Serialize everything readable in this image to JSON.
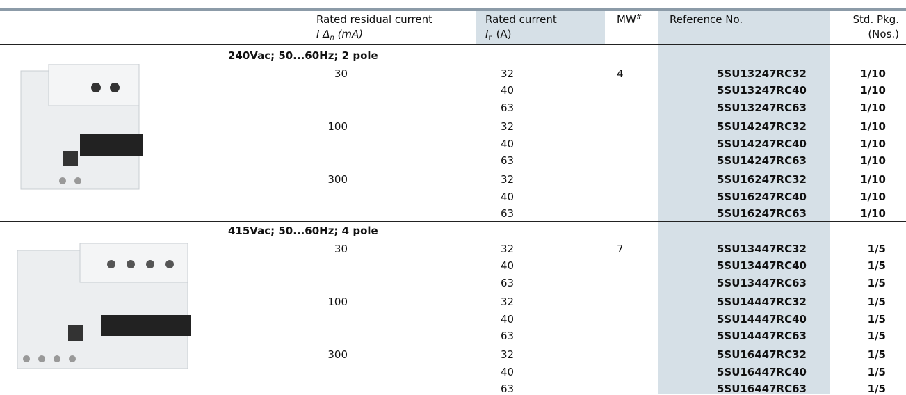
{
  "header": {
    "residual": {
      "line1": "Rated residual current",
      "symbol": "I Δ",
      "subscript": "n",
      "unit": "(mA)"
    },
    "current": {
      "line1": "Rated current",
      "symbol": "I",
      "subscript": "n",
      "unit": "(A)"
    },
    "mw": {
      "text": "MW",
      "superscript": "#"
    },
    "reference": "Reference No.",
    "pkg": {
      "line1": "Std. Pkg.",
      "line2": "(Nos.)"
    }
  },
  "sections": [
    {
      "title": "240Vac; 50...60Hz; 2 pole",
      "groups": [
        {
          "residual": 30,
          "mw": 4,
          "rows": [
            {
              "current": 32,
              "ref": "5SU13247RC32",
              "pkg": "1/10"
            },
            {
              "current": 40,
              "ref": "5SU13247RC40",
              "pkg": "1/10"
            },
            {
              "current": 63,
              "ref": "5SU13247RC63",
              "pkg": "1/10"
            }
          ]
        },
        {
          "residual": 100,
          "rows": [
            {
              "current": 32,
              "ref": "5SU14247RC32",
              "pkg": "1/10"
            },
            {
              "current": 40,
              "ref": "5SU14247RC40",
              "pkg": "1/10"
            },
            {
              "current": 63,
              "ref": "5SU14247RC63",
              "pkg": "1/10"
            }
          ]
        },
        {
          "residual": 300,
          "rows": [
            {
              "current": 32,
              "ref": "5SU16247RC32",
              "pkg": "1/10"
            },
            {
              "current": 40,
              "ref": "5SU16247RC40",
              "pkg": "1/10"
            },
            {
              "current": 63,
              "ref": "5SU16247RC63",
              "pkg": "1/10"
            }
          ]
        }
      ]
    },
    {
      "title": "415Vac; 50...60Hz; 4 pole",
      "groups": [
        {
          "residual": 30,
          "mw": 7,
          "rows": [
            {
              "current": 32,
              "ref": "5SU13447RC32",
              "pkg": "1/5"
            },
            {
              "current": 40,
              "ref": "5SU13447RC40",
              "pkg": "1/5"
            },
            {
              "current": 63,
              "ref": "5SU13447RC63",
              "pkg": "1/5"
            }
          ]
        },
        {
          "residual": 100,
          "rows": [
            {
              "current": 32,
              "ref": "5SU14447RC32",
              "pkg": "1/5"
            },
            {
              "current": 40,
              "ref": "5SU14447RC40",
              "pkg": "1/5"
            },
            {
              "current": 63,
              "ref": "5SU14447RC63",
              "pkg": "1/5"
            }
          ]
        },
        {
          "residual": 300,
          "rows": [
            {
              "current": 32,
              "ref": "5SU16447RC32",
              "pkg": "1/5"
            },
            {
              "current": 40,
              "ref": "5SU16447RC40",
              "pkg": "1/5"
            },
            {
              "current": 63,
              "ref": "5SU16447RC63",
              "pkg": "1/5"
            }
          ]
        }
      ]
    }
  ]
}
